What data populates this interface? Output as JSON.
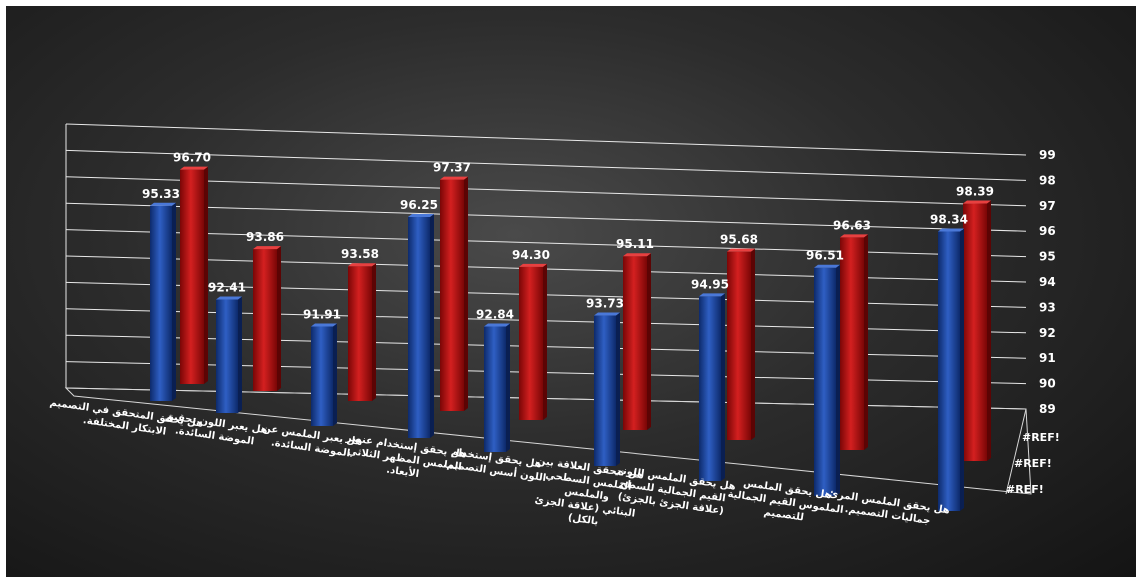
{
  "chart_data": {
    "type": "bar",
    "ylim": [
      89,
      99
    ],
    "y_ticks": [
      "89",
      "90",
      "91",
      "92",
      "93",
      "94",
      "95",
      "96",
      "97",
      "98",
      "99"
    ],
    "depth_labels": [
      "#REF!",
      "#REF!",
      "#REF!"
    ],
    "categories": [
      [
        "هل يحقق المتحقق في التصميم",
        "الابتكار المختلفة."
      ],
      [
        "هل يعبر اللون تحقيق",
        "الموضة السائدة."
      ],
      [
        "هل يعبر الملمس عن",
        "الموضة السائدة."
      ],
      [
        "هل يحقق إستخدام عنصر",
        "الملمس المظهر الثلاثي",
        "الأبعاد."
      ],
      [
        "هل يحقق إستخدام",
        "اللون أسس التصميم."
      ],
      [
        "هل تتحقق العلاقة بين",
        "الملمس السطحي",
        "والملمس",
        "البنائي (علاقة الجزئ",
        "بالكل)"
      ],
      [
        "هل يحقق الملمس اللوني",
        "القيم الجمالية للسطح",
        "(علاقة الجزئ بالجزئ)"
      ],
      [
        "هل يحقق الملمس",
        "الملموس القيم الجمالية",
        "للتصميم"
      ],
      [
        "هل يحقق الملمس المرئ",
        "جماليات التصميم."
      ]
    ],
    "series": [
      {
        "values": [
          95.33,
          92.41,
          91.91,
          96.25,
          92.84,
          93.73,
          94.95,
          96.51,
          98.34
        ]
      },
      {
        "values": [
          96.7,
          93.86,
          93.58,
          97.37,
          94.3,
          95.11,
          95.68,
          96.63,
          98.39
        ]
      }
    ],
    "value_labels": [
      [
        "95.33",
        "92.41",
        "91.91",
        "96.25",
        "92.84",
        "93.73",
        "94.95",
        "96.51",
        "98.34"
      ],
      [
        "96.70",
        "93.86",
        "93.58",
        "97.37",
        "94.30",
        "95.11",
        "95.68",
        "96.63",
        "98.39"
      ]
    ],
    "colors": {
      "series_front": "#1d3f8f",
      "series_back": "#b01010",
      "background": "#2b2b2b",
      "gridline": "#e8e8e8"
    },
    "grid": true,
    "legend": "none"
  }
}
